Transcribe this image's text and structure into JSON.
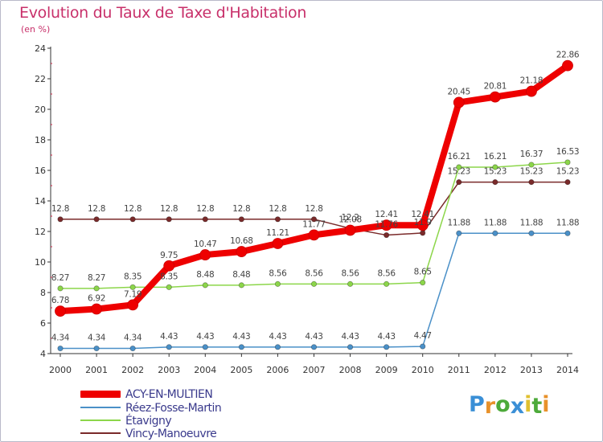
{
  "header": {
    "title": "Evolution du Taux de Taxe d'Habitation",
    "subtitle": "(en %)"
  },
  "logo": {
    "text": "Proxiti",
    "letters": [
      {
        "ch": "P",
        "color": "#3a8fd6"
      },
      {
        "ch": "r",
        "color": "#e8912a"
      },
      {
        "ch": "o",
        "color": "#4daa3a"
      },
      {
        "ch": "x",
        "color": "#3a8fd6"
      },
      {
        "ch": "i",
        "color": "#e0c030"
      },
      {
        "ch": "t",
        "color": "#4daa3a"
      },
      {
        "ch": "i",
        "color": "#e8912a"
      }
    ]
  },
  "chart_data": {
    "type": "line",
    "title": "Evolution du Taux de Taxe d'Habitation",
    "subtitle": "(en %)",
    "ylim": [
      4,
      24
    ],
    "yticks": [
      4,
      6,
      8,
      10,
      12,
      14,
      16,
      18,
      20,
      22,
      24
    ],
    "x": [
      2000,
      2001,
      2002,
      2003,
      2004,
      2005,
      2006,
      2007,
      2008,
      2009,
      2010,
      2011,
      2012,
      2013,
      2014
    ],
    "grid": false,
    "legend_position": "bottom-left",
    "series": [
      {
        "name": "Vincy-Manoeuvre",
        "color": "#7a2a2a",
        "values": [
          12.8,
          12.8,
          12.8,
          12.8,
          12.8,
          12.8,
          12.8,
          12.8,
          12.2,
          11.76,
          11.9,
          15.23,
          15.23,
          15.23,
          15.23
        ],
        "labels": [
          "12.8",
          "12.8",
          "12.8",
          "12.8",
          "12.8",
          "12.8",
          "12.8",
          "12.8",
          "12.2",
          "11.76",
          "11.9",
          "15.23",
          "15.23",
          "15.23",
          "15.23"
        ]
      },
      {
        "name": "Étavigny",
        "color": "#8cd64a",
        "values": [
          8.27,
          8.27,
          8.35,
          8.35,
          8.48,
          8.48,
          8.56,
          8.56,
          8.56,
          8.56,
          8.65,
          16.21,
          16.21,
          16.37,
          16.53
        ],
        "labels": [
          "8.27",
          "8.27",
          "8.35",
          "8.35",
          "8.48",
          "8.48",
          "8.56",
          "8.56",
          "8.56",
          "8.56",
          "8.65",
          "16.21",
          "16.21",
          "16.37",
          "16.53"
        ]
      },
      {
        "name": "Réez-Fosse-Martin",
        "color": "#4a90c8",
        "values": [
          4.34,
          4.34,
          4.34,
          4.43,
          4.43,
          4.43,
          4.43,
          4.43,
          4.43,
          4.43,
          4.47,
          11.88,
          11.88,
          11.88,
          11.88
        ],
        "labels": [
          "4.34",
          "4.34",
          "4.34",
          "4.43",
          "4.43",
          "4.43",
          "4.43",
          "4.43",
          "4.43",
          "4.43",
          "4.47",
          "11.88",
          "11.88",
          "11.88",
          "11.88"
        ]
      },
      {
        "name": "ACY-EN-MULTIEN",
        "color": "#ee0000",
        "values": [
          6.78,
          6.92,
          7.19,
          9.75,
          10.47,
          10.68,
          11.21,
          11.77,
          12.08,
          12.41,
          12.41,
          20.45,
          20.81,
          21.18,
          22.86
        ],
        "labels": [
          "6.78",
          "6.92",
          "7.19",
          "9.75",
          "10.47",
          "10.68",
          "11.21",
          "11.77",
          "12.08",
          "12.41",
          "12.41",
          "20.45",
          "20.81",
          "21.18",
          "22.86"
        ]
      }
    ]
  },
  "legend": {
    "items": [
      {
        "label": "ACY-EN-MULTIEN",
        "color": "#ee0000"
      },
      {
        "label": "Réez-Fosse-Martin",
        "color": "#4a90c8"
      },
      {
        "label": "Étavigny",
        "color": "#8cd64a"
      },
      {
        "label": "Vincy-Manoeuvre",
        "color": "#7a2a2a"
      }
    ]
  }
}
